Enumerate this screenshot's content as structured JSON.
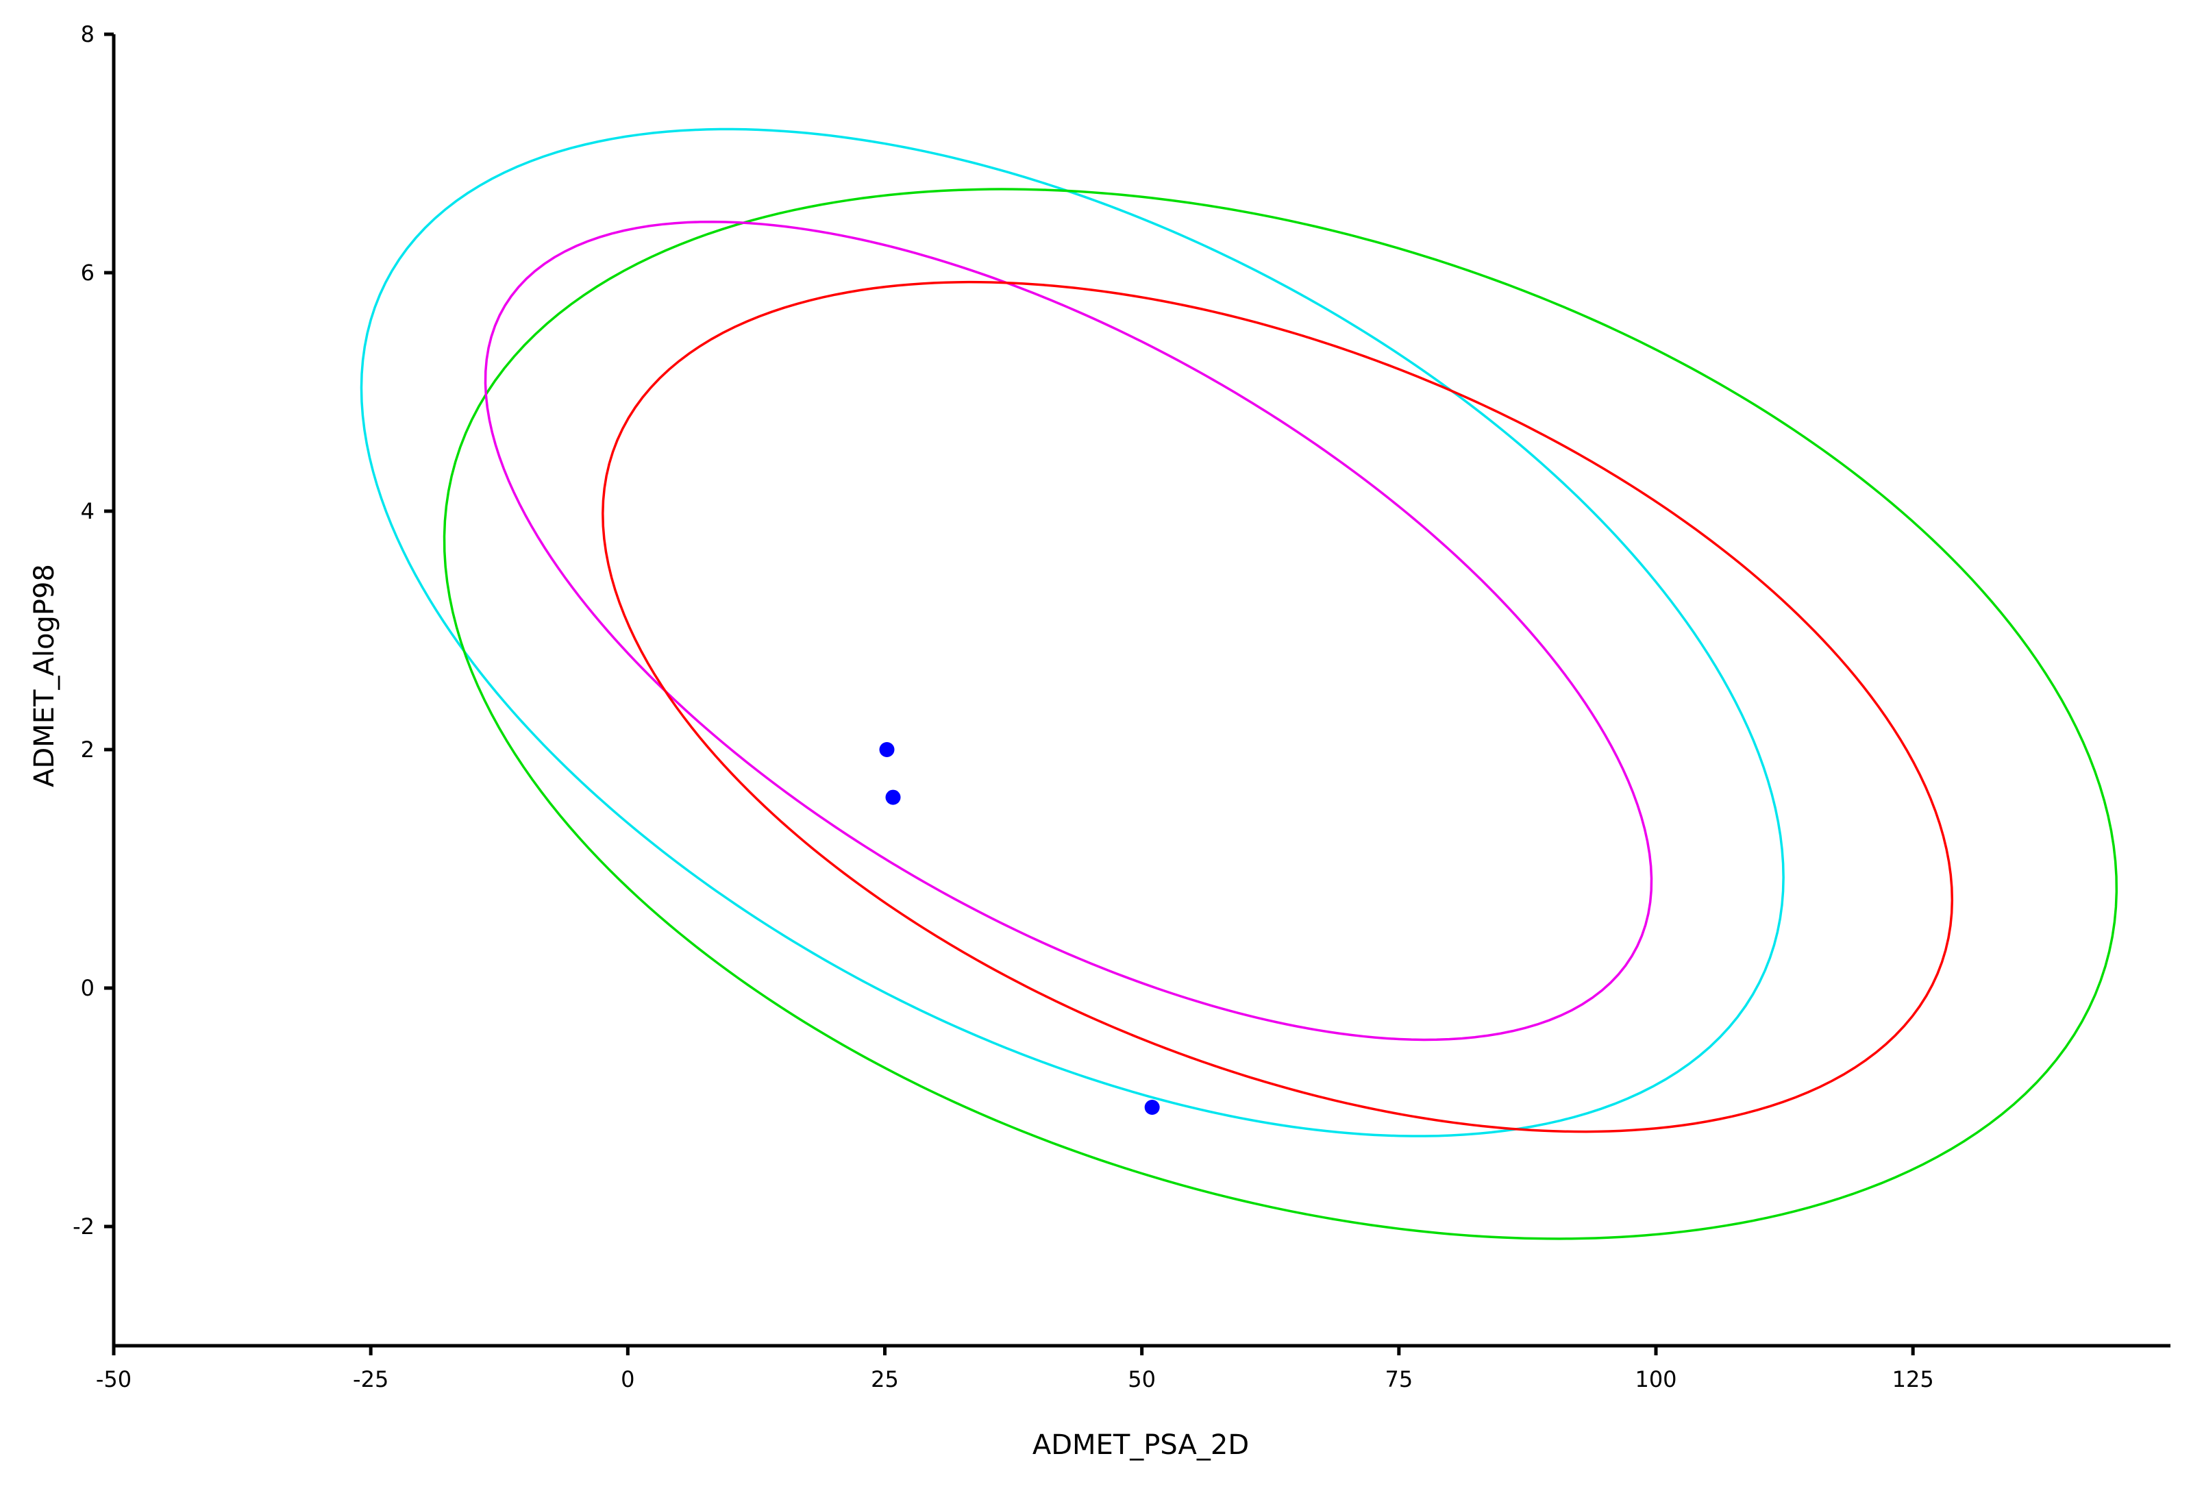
{
  "chart_data": {
    "type": "scatter",
    "xlabel": "ADMET_PSA_2D",
    "ylabel": "ADMET_AlogP98",
    "xlim": [
      -50,
      150
    ],
    "ylim": [
      -3,
      8
    ],
    "x_ticks": [
      -50,
      -25,
      0,
      25,
      50,
      75,
      100,
      125
    ],
    "y_ticks": [
      -2,
      0,
      2,
      4,
      6,
      8
    ],
    "grid": false,
    "points": {
      "color": "#0000ff",
      "x": [
        25.2,
        25.8,
        51.0
      ],
      "y": [
        2.0,
        1.6,
        -1.0
      ]
    },
    "ellipses": [
      {
        "color": "#00e5ee",
        "boundary": [
          [
            -25.9,
            5.1
          ],
          [
            7.0,
            7.2
          ],
          [
            112.4,
            0.9
          ],
          [
            85.0,
            -1.2
          ],
          [
            -12.0,
            2.4
          ]
        ]
      },
      {
        "color": "#00dd00",
        "boundary": [
          [
            -17.8,
            3.9
          ],
          [
            35.0,
            6.7
          ],
          [
            144.8,
            0.8
          ],
          [
            93.0,
            -2.1
          ],
          [
            -8.0,
            1.6
          ]
        ]
      },
      {
        "color": "#ee00ee",
        "boundary": [
          [
            -13.3,
            4.7
          ],
          [
            14.0,
            6.4
          ],
          [
            99.0,
            1.3
          ],
          [
            71.0,
            -0.4
          ],
          [
            -2.0,
            3.0
          ]
        ]
      },
      {
        "color": "#ff0000",
        "boundary": [
          [
            -2.0,
            3.6
          ],
          [
            40.0,
            5.9
          ],
          [
            128.6,
            1.0
          ],
          [
            90.0,
            -1.2
          ],
          [
            8.0,
            2.0
          ]
        ]
      }
    ]
  }
}
